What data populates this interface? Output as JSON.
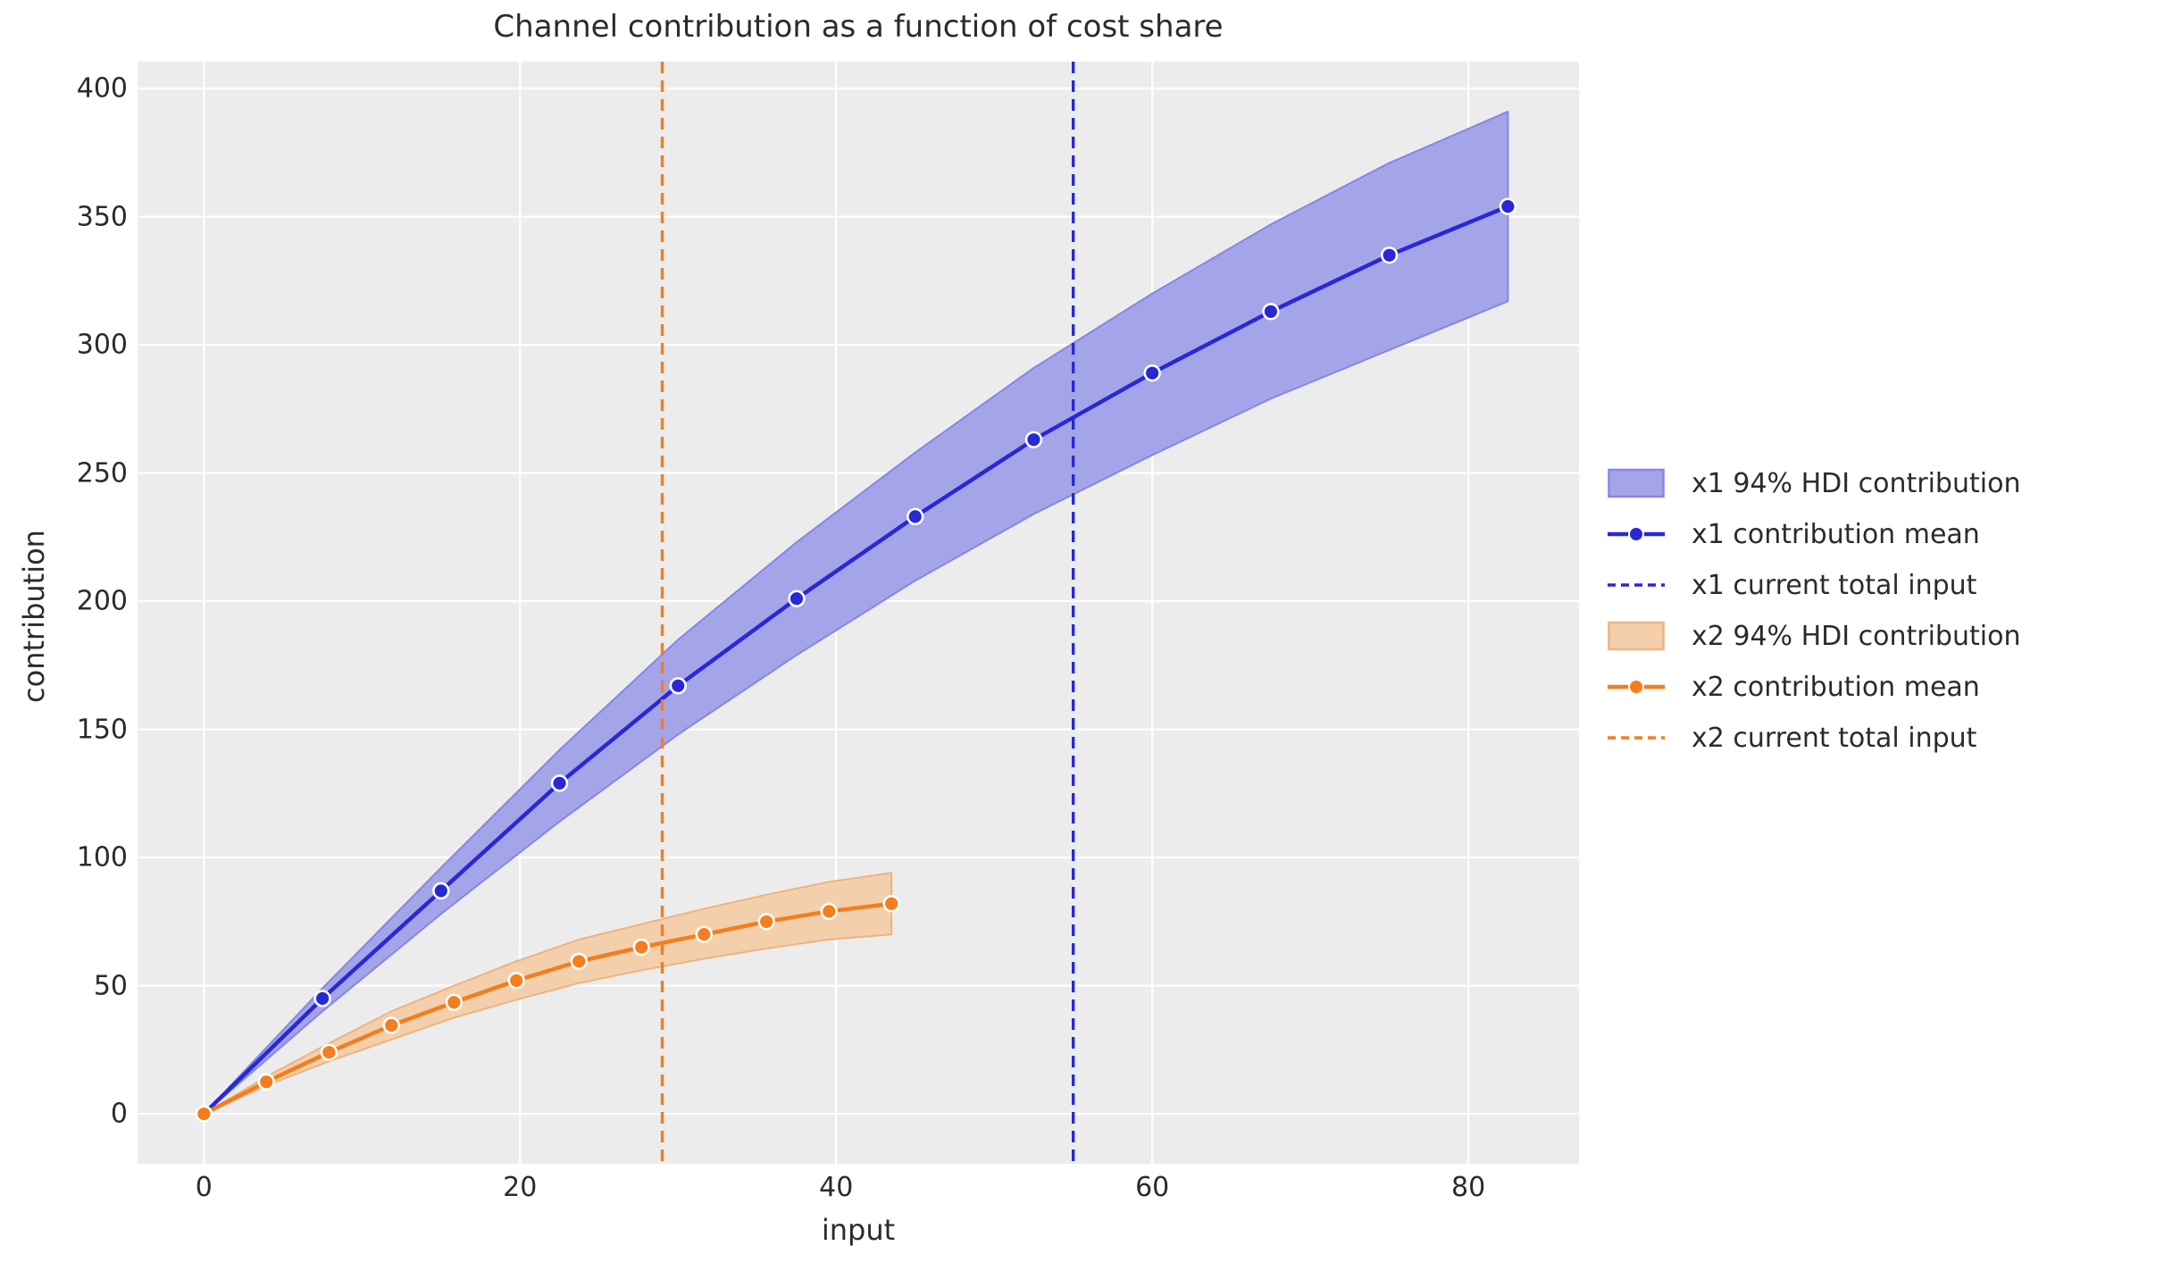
{
  "title": "Channel contribution as a function of cost share",
  "axes": {
    "xlabel": "input",
    "ylabel": "contribution",
    "x_ticks": [
      0,
      20,
      40,
      60,
      80
    ],
    "y_ticks": [
      0,
      50,
      100,
      150,
      200,
      250,
      300,
      350,
      400
    ]
  },
  "colors": {
    "plot_background": "#ececec",
    "gridline": "#ffffff",
    "text": "#2b2b2b",
    "x1_line": "#2828d7",
    "x1_band_fill": "#a4a4e9",
    "x1_band_edge": "#8585e8",
    "x2_line": "#f57d1e",
    "x2_band_fill": "#f3cfab",
    "x2_band_edge": "#f0b27f",
    "marker_edge": "#ffffff"
  },
  "legend": {
    "items": [
      {
        "label": "x1 94% HDI contribution",
        "type": "patch",
        "fill": "#a4a4e9",
        "edge": "#8585e8"
      },
      {
        "label": "x1 contribution mean",
        "type": "line-marker",
        "color": "#2828d7"
      },
      {
        "label": "x1 current total input",
        "type": "dashed",
        "color": "#2828d7"
      },
      {
        "label": "x2 94% HDI contribution",
        "type": "patch",
        "fill": "#f3cfab",
        "edge": "#f0b27f"
      },
      {
        "label": "x2 contribution mean",
        "type": "line-marker",
        "color": "#f57d1e"
      },
      {
        "label": "x2 current total input",
        "type": "dashed",
        "color": "#f57d1e"
      }
    ]
  },
  "chart_data": {
    "type": "line",
    "title": "Channel contribution as a function of cost share",
    "xlabel": "input",
    "ylabel": "contribution",
    "xlim": [
      -4.2,
      87.0
    ],
    "ylim": [
      -19.5,
      410.5
    ],
    "grid": true,
    "legend_position": "center right, outside axes",
    "series": [
      {
        "name": "x1 94% HDI contribution",
        "kind": "band",
        "fill": "#a4a4e9",
        "edge": "#8585e8",
        "x": [
          0,
          7.5,
          15,
          22.5,
          30,
          37.5,
          45,
          52.5,
          60,
          67.5,
          75,
          82.5
        ],
        "low": [
          0,
          40,
          78,
          114,
          148,
          179,
          208,
          234,
          257,
          279,
          298,
          317
        ],
        "high": [
          0,
          49,
          96,
          142,
          185,
          223,
          258,
          291,
          320,
          347,
          371,
          391
        ]
      },
      {
        "name": "x1 contribution mean",
        "kind": "line-marker",
        "color": "#2828d7",
        "x": [
          0,
          7.5,
          15,
          22.5,
          30,
          37.5,
          45,
          52.5,
          60,
          67.5,
          75,
          82.5
        ],
        "y": [
          0,
          45,
          87,
          129,
          167,
          201,
          233,
          263,
          289,
          313,
          335,
          354
        ]
      },
      {
        "name": "x2 94% HDI contribution",
        "kind": "band",
        "fill": "#f3cfab",
        "edge": "#f0b27f",
        "x": [
          0,
          3.95,
          7.91,
          11.86,
          15.82,
          19.77,
          23.73,
          27.68,
          31.64,
          35.59,
          39.55,
          43.5
        ],
        "low": [
          0,
          11,
          20.5,
          29,
          37.5,
          44.5,
          51,
          56,
          60.5,
          64.5,
          68,
          70
        ],
        "high": [
          0,
          14.5,
          27.5,
          40,
          50,
          59.5,
          68,
          74,
          80,
          85.5,
          90.5,
          94
        ]
      },
      {
        "name": "x2 contribution mean",
        "kind": "line-marker",
        "color": "#f57d1e",
        "x": [
          0,
          3.95,
          7.91,
          11.86,
          15.82,
          19.77,
          23.73,
          27.68,
          31.64,
          35.59,
          39.55,
          43.5
        ],
        "y": [
          0,
          12.5,
          24,
          34.5,
          43.5,
          52,
          59.5,
          65,
          70,
          75,
          79,
          82
        ]
      },
      {
        "name": "x1 current total input",
        "kind": "vline",
        "color": "#2828d7",
        "x": 55
      },
      {
        "name": "x2 current total input",
        "kind": "vline",
        "color": "#f57d1e",
        "x": 29
      }
    ]
  }
}
